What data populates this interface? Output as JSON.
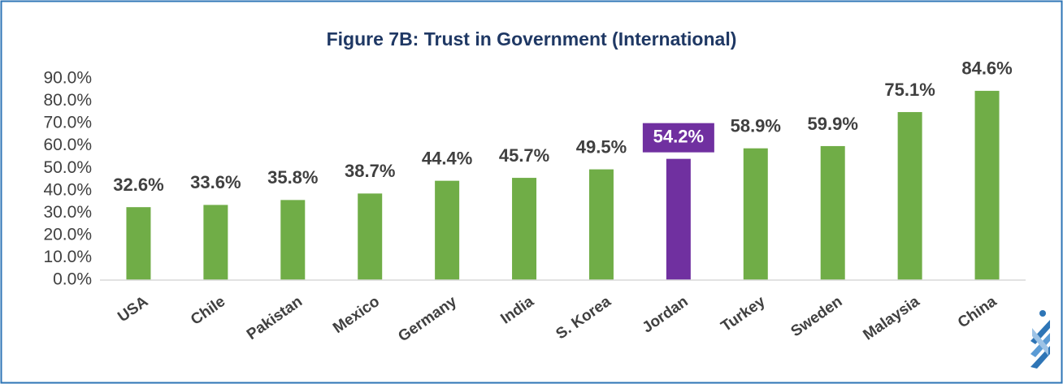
{
  "chart_data": {
    "type": "bar",
    "title": "Figure 7B: Trust in Government (International)",
    "categories": [
      "USA",
      "Chile",
      "Pakistan",
      "Mexico",
      "Germany",
      "India",
      "S. Korea",
      "Jordan",
      "Turkey",
      "Sweden",
      "Malaysia",
      "China"
    ],
    "values": [
      32.6,
      33.6,
      35.8,
      38.7,
      44.4,
      45.7,
      49.5,
      54.2,
      58.9,
      59.9,
      75.1,
      84.6
    ],
    "value_labels": [
      "32.6%",
      "33.6%",
      "35.8%",
      "38.7%",
      "44.4%",
      "45.7%",
      "49.5%",
      "54.2%",
      "58.9%",
      "59.9%",
      "75.1%",
      "84.6%"
    ],
    "colors": [
      "#70ad47",
      "#70ad47",
      "#70ad47",
      "#70ad47",
      "#70ad47",
      "#70ad47",
      "#70ad47",
      "#7030a0",
      "#70ad47",
      "#70ad47",
      "#70ad47",
      "#70ad47"
    ],
    "highlight": "Jordan",
    "ylim": [
      0,
      90
    ],
    "yticks": [
      {
        "value": 0,
        "label": "0.0%"
      },
      {
        "value": 10,
        "label": "10.0%"
      },
      {
        "value": 20,
        "label": "20.0%"
      },
      {
        "value": 30,
        "label": "30.0%"
      },
      {
        "value": 40,
        "label": "40.0%"
      },
      {
        "value": 50,
        "label": "50.0%"
      },
      {
        "value": 60,
        "label": "60.0%"
      },
      {
        "value": 70,
        "label": "70.0%"
      },
      {
        "value": 80,
        "label": "80.0%"
      },
      {
        "value": 90,
        "label": "90.0%"
      }
    ],
    "grid": false
  }
}
